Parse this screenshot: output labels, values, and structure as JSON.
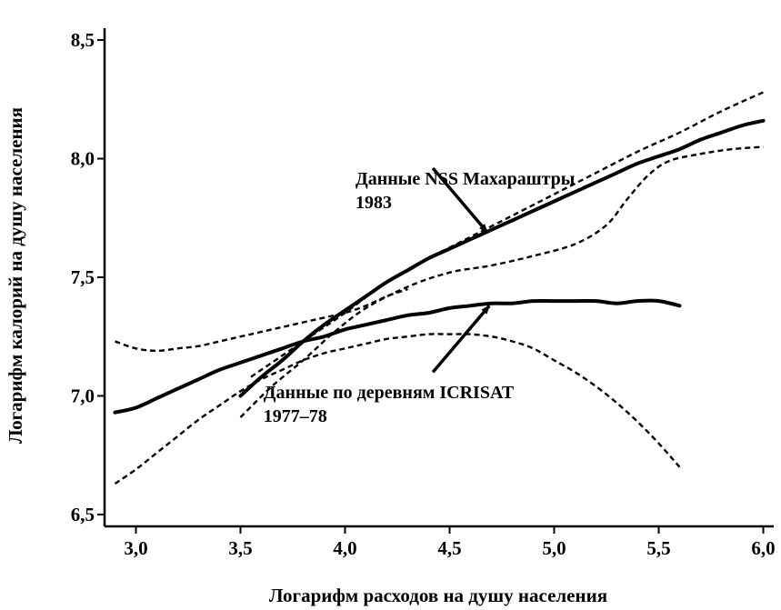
{
  "chart_data": {
    "type": "line",
    "xlabel": "Логарифм расходов на душу населения",
    "ylabel": "Логарифм калорий на душу населения",
    "xlim": [
      2.85,
      6.05
    ],
    "ylim": [
      6.45,
      8.55
    ],
    "x_ticks": [
      {
        "value": 3.0,
        "label": "3,0"
      },
      {
        "value": 3.5,
        "label": "3,5"
      },
      {
        "value": 4.0,
        "label": "4,0"
      },
      {
        "value": 4.5,
        "label": "4,5"
      },
      {
        "value": 5.0,
        "label": "5,0"
      },
      {
        "value": 5.5,
        "label": "5,5"
      },
      {
        "value": 6.0,
        "label": "6,0"
      }
    ],
    "y_ticks": [
      {
        "value": 6.5,
        "label": "6,5"
      },
      {
        "value": 7.0,
        "label": "7,0"
      },
      {
        "value": 7.5,
        "label": "7,5"
      },
      {
        "value": 8.0,
        "label": "8,0"
      },
      {
        "value": 8.5,
        "label": "8,5"
      }
    ],
    "grid": false,
    "series": [
      {
        "id": "nss",
        "style": "solid",
        "color": "#000000",
        "points": [
          [
            3.5,
            7.0
          ],
          [
            3.6,
            7.08
          ],
          [
            3.7,
            7.15
          ],
          [
            3.8,
            7.23
          ],
          [
            3.9,
            7.3
          ],
          [
            4.0,
            7.36
          ],
          [
            4.1,
            7.42
          ],
          [
            4.2,
            7.48
          ],
          [
            4.3,
            7.53
          ],
          [
            4.4,
            7.58
          ],
          [
            4.5,
            7.62
          ],
          [
            4.6,
            7.66
          ],
          [
            4.7,
            7.7
          ],
          [
            4.8,
            7.74
          ],
          [
            4.9,
            7.78
          ],
          [
            5.0,
            7.82
          ],
          [
            5.1,
            7.86
          ],
          [
            5.2,
            7.9
          ],
          [
            5.3,
            7.94
          ],
          [
            5.4,
            7.98
          ],
          [
            5.5,
            8.01
          ],
          [
            5.6,
            8.04
          ],
          [
            5.7,
            8.08
          ],
          [
            5.8,
            8.11
          ],
          [
            5.9,
            8.14
          ],
          [
            6.0,
            8.16
          ]
        ]
      },
      {
        "id": "nss_band_upper",
        "style": "dashed",
        "color": "#000000",
        "points": [
          [
            3.55,
            7.08
          ],
          [
            3.7,
            7.17
          ],
          [
            3.85,
            7.26
          ],
          [
            4.0,
            7.35
          ],
          [
            4.2,
            7.48
          ],
          [
            4.4,
            7.58
          ],
          [
            4.6,
            7.67
          ],
          [
            4.8,
            7.76
          ],
          [
            5.0,
            7.85
          ],
          [
            5.2,
            7.94
          ],
          [
            5.4,
            8.03
          ],
          [
            5.6,
            8.11
          ],
          [
            5.8,
            8.2
          ],
          [
            6.0,
            8.28
          ]
        ]
      },
      {
        "id": "nss_band_lower",
        "style": "dashed",
        "color": "#000000",
        "points": [
          [
            3.5,
            6.91
          ],
          [
            3.65,
            7.04
          ],
          [
            3.8,
            7.15
          ],
          [
            3.95,
            7.27
          ],
          [
            4.1,
            7.37
          ],
          [
            4.3,
            7.46
          ],
          [
            4.5,
            7.52
          ],
          [
            4.7,
            7.55
          ],
          [
            4.9,
            7.59
          ],
          [
            5.1,
            7.64
          ],
          [
            5.25,
            7.72
          ],
          [
            5.35,
            7.83
          ],
          [
            5.45,
            7.93
          ],
          [
            5.55,
            7.99
          ],
          [
            5.7,
            8.02
          ],
          [
            5.85,
            8.04
          ],
          [
            6.0,
            8.05
          ]
        ]
      },
      {
        "id": "icrisat",
        "style": "solid",
        "color": "#000000",
        "points": [
          [
            2.9,
            6.93
          ],
          [
            3.0,
            6.95
          ],
          [
            3.1,
            6.99
          ],
          [
            3.2,
            7.03
          ],
          [
            3.3,
            7.07
          ],
          [
            3.4,
            7.11
          ],
          [
            3.5,
            7.14
          ],
          [
            3.6,
            7.17
          ],
          [
            3.7,
            7.2
          ],
          [
            3.8,
            7.23
          ],
          [
            3.9,
            7.25
          ],
          [
            4.0,
            7.28
          ],
          [
            4.1,
            7.3
          ],
          [
            4.2,
            7.32
          ],
          [
            4.3,
            7.34
          ],
          [
            4.4,
            7.35
          ],
          [
            4.5,
            7.37
          ],
          [
            4.6,
            7.38
          ],
          [
            4.7,
            7.39
          ],
          [
            4.8,
            7.39
          ],
          [
            4.9,
            7.4
          ],
          [
            5.0,
            7.4
          ],
          [
            5.1,
            7.4
          ],
          [
            5.2,
            7.4
          ],
          [
            5.3,
            7.39
          ],
          [
            5.4,
            7.4
          ],
          [
            5.5,
            7.4
          ],
          [
            5.6,
            7.38
          ]
        ]
      },
      {
        "id": "icrisat_band_upper",
        "style": "dashed",
        "color": "#000000",
        "points": [
          [
            2.9,
            7.23
          ],
          [
            3.0,
            7.2
          ],
          [
            3.1,
            7.19
          ],
          [
            3.2,
            7.2
          ],
          [
            3.3,
            7.21
          ],
          [
            3.4,
            7.23
          ],
          [
            3.5,
            7.25
          ],
          [
            3.6,
            7.27
          ],
          [
            3.7,
            7.29
          ],
          [
            3.8,
            7.31
          ],
          [
            3.9,
            7.33
          ],
          [
            4.0,
            7.35
          ],
          [
            4.1,
            7.38
          ],
          [
            4.2,
            7.42
          ],
          [
            4.3,
            7.45
          ]
        ]
      },
      {
        "id": "icrisat_band_lower",
        "style": "dashed",
        "color": "#000000",
        "points": [
          [
            2.9,
            6.63
          ],
          [
            3.0,
            6.69
          ],
          [
            3.1,
            6.76
          ],
          [
            3.2,
            6.83
          ],
          [
            3.3,
            6.9
          ],
          [
            3.4,
            6.96
          ],
          [
            3.5,
            7.02
          ],
          [
            3.6,
            7.07
          ],
          [
            3.7,
            7.11
          ],
          [
            3.8,
            7.15
          ],
          [
            3.9,
            7.18
          ],
          [
            4.0,
            7.2
          ],
          [
            4.1,
            7.22
          ],
          [
            4.2,
            7.24
          ],
          [
            4.3,
            7.25
          ],
          [
            4.4,
            7.26
          ],
          [
            4.5,
            7.26
          ],
          [
            4.6,
            7.26
          ],
          [
            4.7,
            7.25
          ],
          [
            4.8,
            7.23
          ],
          [
            4.9,
            7.2
          ],
          [
            5.0,
            7.15
          ],
          [
            5.1,
            7.1
          ],
          [
            5.2,
            7.04
          ],
          [
            5.3,
            6.97
          ],
          [
            5.4,
            6.89
          ],
          [
            5.5,
            6.8
          ],
          [
            5.6,
            6.7
          ]
        ]
      }
    ],
    "annotations": [
      {
        "id": "nss",
        "lines": [
          "Данные NSS Махараштры",
          "1983"
        ],
        "text_anchor": [
          4.05,
          7.89
        ],
        "arrow_from": [
          4.42,
          7.96
        ],
        "arrow_to": [
          4.68,
          7.69
        ]
      },
      {
        "id": "icrisat",
        "lines": [
          "Данные по деревням ICRISAT",
          "1977–78"
        ],
        "text_anchor": [
          3.61,
          6.99
        ],
        "arrow_from": [
          4.42,
          7.1
        ],
        "arrow_to": [
          4.69,
          7.38
        ]
      }
    ]
  }
}
